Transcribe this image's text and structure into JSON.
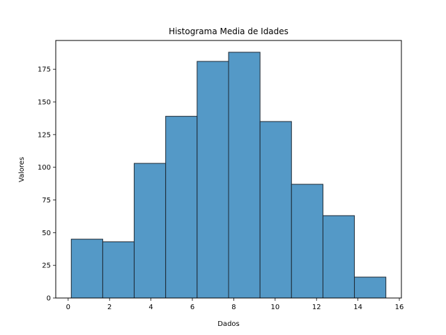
{
  "chart_data": {
    "type": "bar",
    "title": "Histograma Media de Idades",
    "xlabel": "Dados",
    "ylabel": "Valores",
    "xlim": [
      -0.6,
      16.1
    ],
    "ylim": [
      0,
      197
    ],
    "bins": [
      {
        "x0": 0.15,
        "x1": 1.67,
        "count": 45
      },
      {
        "x0": 1.67,
        "x1": 3.19,
        "count": 43
      },
      {
        "x0": 3.19,
        "x1": 4.71,
        "count": 103
      },
      {
        "x0": 4.71,
        "x1": 6.23,
        "count": 139
      },
      {
        "x0": 6.23,
        "x1": 7.75,
        "count": 181
      },
      {
        "x0": 7.75,
        "x1": 9.27,
        "count": 188
      },
      {
        "x0": 9.27,
        "x1": 10.79,
        "count": 135
      },
      {
        "x0": 10.79,
        "x1": 12.31,
        "count": 87
      },
      {
        "x0": 12.31,
        "x1": 13.83,
        "count": 63
      },
      {
        "x0": 13.83,
        "x1": 15.35,
        "count": 16
      }
    ],
    "xticks": [
      0,
      2,
      4,
      6,
      8,
      10,
      12,
      14,
      16
    ],
    "xtick_labels": [
      "0",
      "2",
      "4",
      "6",
      "8",
      "10",
      "12",
      "14",
      "16"
    ],
    "yticks": [
      0,
      25,
      50,
      75,
      100,
      125,
      150,
      175
    ],
    "ytick_labels": [
      "0",
      "25",
      "50",
      "75",
      "100",
      "125",
      "150",
      "175"
    ],
    "bar_color": "#5499c7",
    "edge_color": "#1c2833",
    "grid": false,
    "legend": "none"
  }
}
